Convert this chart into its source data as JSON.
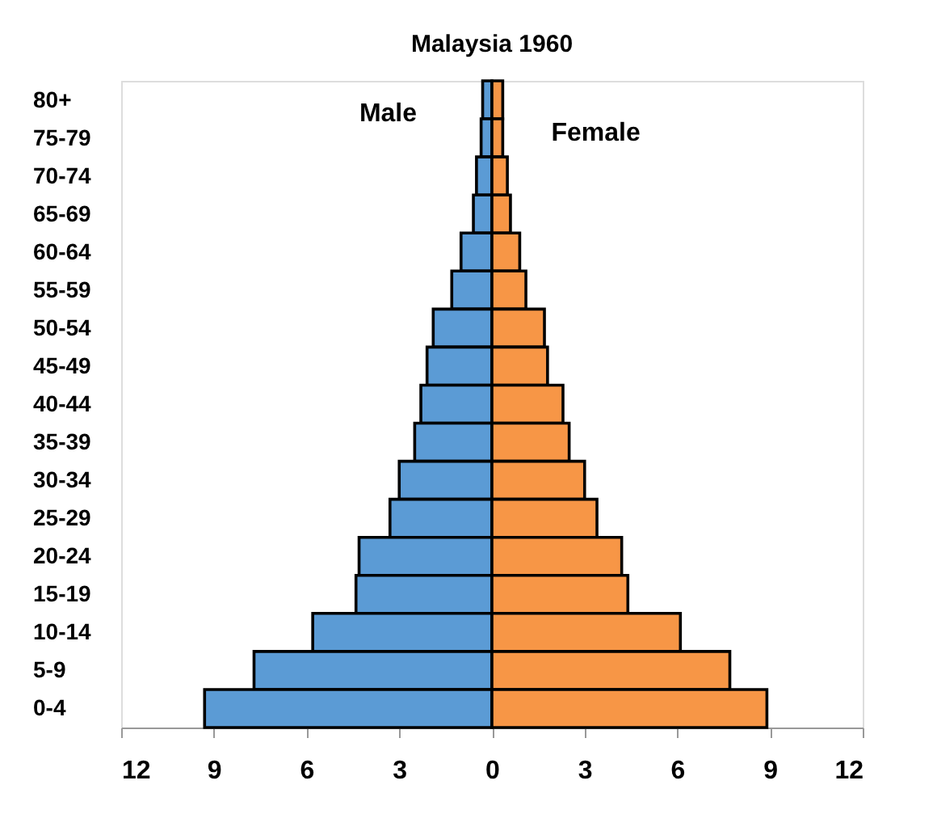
{
  "chart_data": {
    "type": "bar",
    "orientation": "horizontal",
    "stacked": true,
    "title": "Malaysia 1960",
    "categories": [
      "80+",
      "75-79",
      "70-74",
      "65-69",
      "60-64",
      "55-59",
      "50-54",
      "45-49",
      "40-44",
      "35-39",
      "30-34",
      "25-29",
      "20-24",
      "15-19",
      "10-14",
      "5-9",
      "0-4"
    ],
    "series": [
      {
        "name": "Male",
        "color": "#5b9bd5",
        "values": [
          -0.3,
          -0.35,
          -0.5,
          -0.6,
          -1.0,
          -1.3,
          -1.9,
          -2.1,
          -2.3,
          -2.5,
          -3.0,
          -3.3,
          -4.3,
          -4.4,
          -5.8,
          -7.7,
          -9.3
        ]
      },
      {
        "name": "Female",
        "color": "#f79646",
        "values": [
          0.35,
          0.35,
          0.5,
          0.6,
          0.9,
          1.1,
          1.7,
          1.8,
          2.3,
          2.5,
          3.0,
          3.4,
          4.2,
          4.4,
          6.1,
          7.7,
          8.9
        ]
      }
    ],
    "xlim": [
      -12,
      12
    ],
    "xticks": [
      {
        "value": -12,
        "label": "12"
      },
      {
        "value": -9,
        "label": "9"
      },
      {
        "value": -6,
        "label": "6"
      },
      {
        "value": -3,
        "label": "3"
      },
      0,
      3,
      6,
      9,
      12
    ],
    "grid": false,
    "legend": false
  }
}
